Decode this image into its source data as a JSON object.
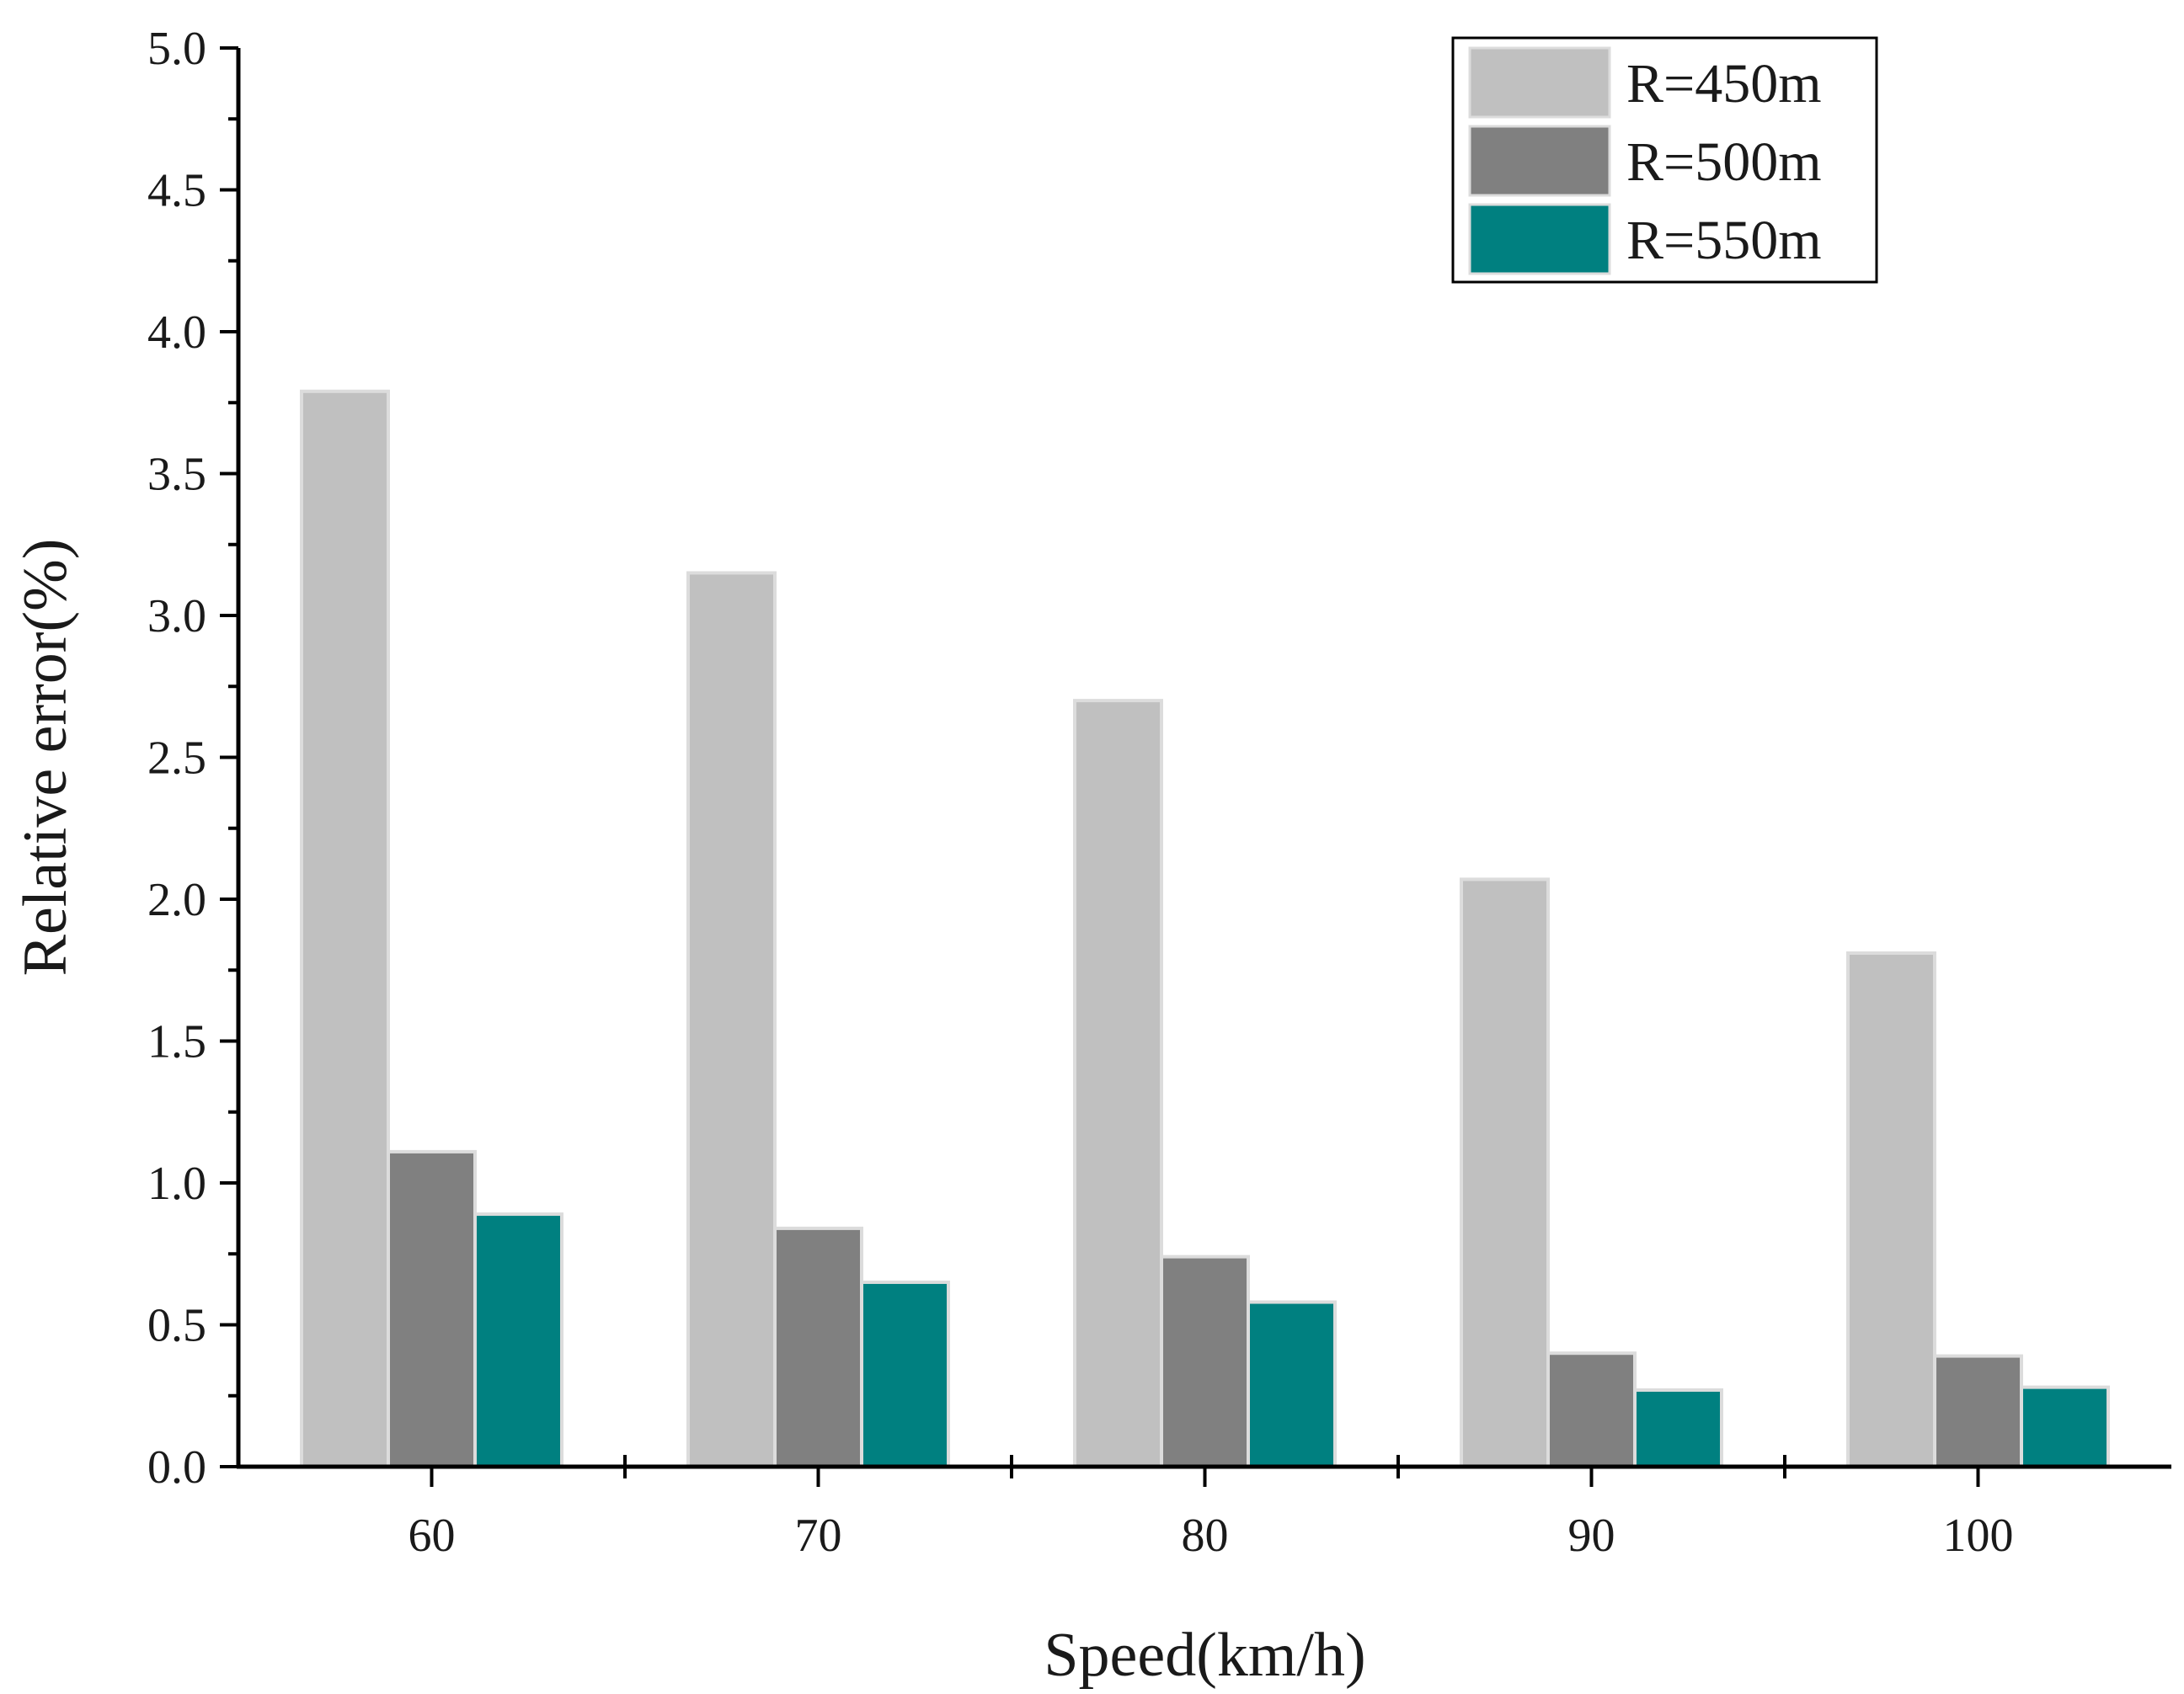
{
  "chart_data": {
    "type": "bar",
    "title": "",
    "xlabel": "Speed(km/h)",
    "ylabel": "Relative error(%)",
    "categories": [
      "60",
      "70",
      "80",
      "90",
      "100"
    ],
    "ylim": [
      0,
      5.0
    ],
    "yticks": [
      "0.0",
      "0.5",
      "1.0",
      "1.5",
      "2.0",
      "2.5",
      "3.0",
      "3.5",
      "4.0",
      "4.5",
      "5.0"
    ],
    "grid": false,
    "legend_position": "top-right",
    "series": [
      {
        "name": "R=450m",
        "color": "#c0c0c0",
        "values": [
          3.79,
          3.15,
          2.7,
          2.07,
          1.81
        ]
      },
      {
        "name": "R=500m",
        "color": "#808080",
        "values": [
          1.11,
          0.84,
          0.74,
          0.4,
          0.39
        ]
      },
      {
        "name": "R=550m",
        "color": "#008080",
        "values": [
          0.89,
          0.65,
          0.58,
          0.27,
          0.28
        ]
      }
    ]
  }
}
